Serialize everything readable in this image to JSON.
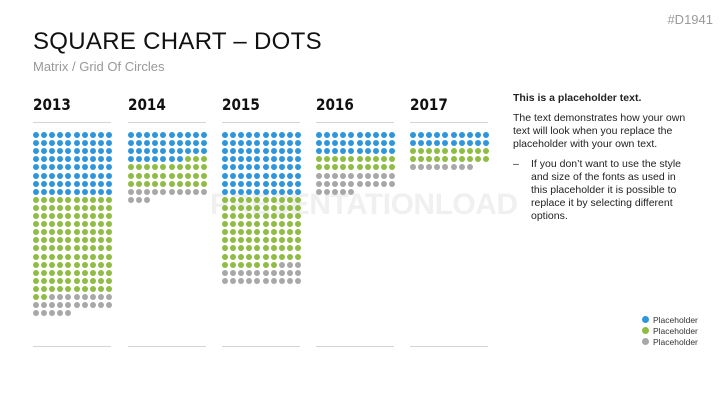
{
  "slide_code": "#D1941",
  "title": "SQUARE CHART – DOTS",
  "subtitle": "Matrix / Grid Of Circles",
  "watermark": "PRESENTATIONLOAD",
  "side_text": {
    "heading": "This is a placeholder text.",
    "paragraph": "The text demonstrates how your own text will look when you replace the placeholder with your own text.",
    "bullet_marker": "–",
    "bullet": "If you don’t want to use the style and size of the fonts as used in this placeholder it is possible to replace it by selecting different options."
  },
  "chart_data": {
    "type": "dot-matrix",
    "dots_per_row": 10,
    "categories": [
      "2013",
      "2014",
      "2015",
      "2016",
      "2017"
    ],
    "series": [
      {
        "name": "Placeholder",
        "color": "#2f96dc",
        "values": [
          80,
          37,
          80,
          30,
          20
        ]
      },
      {
        "name": "Placeholder",
        "color": "#8fbc45",
        "values": [
          122,
          33,
          87,
          20,
          20
        ]
      },
      {
        "name": "Placeholder",
        "color": "#a8a8a8",
        "values": [
          23,
          13,
          23,
          25,
          8
        ]
      }
    ],
    "legend": "bottom-right"
  }
}
